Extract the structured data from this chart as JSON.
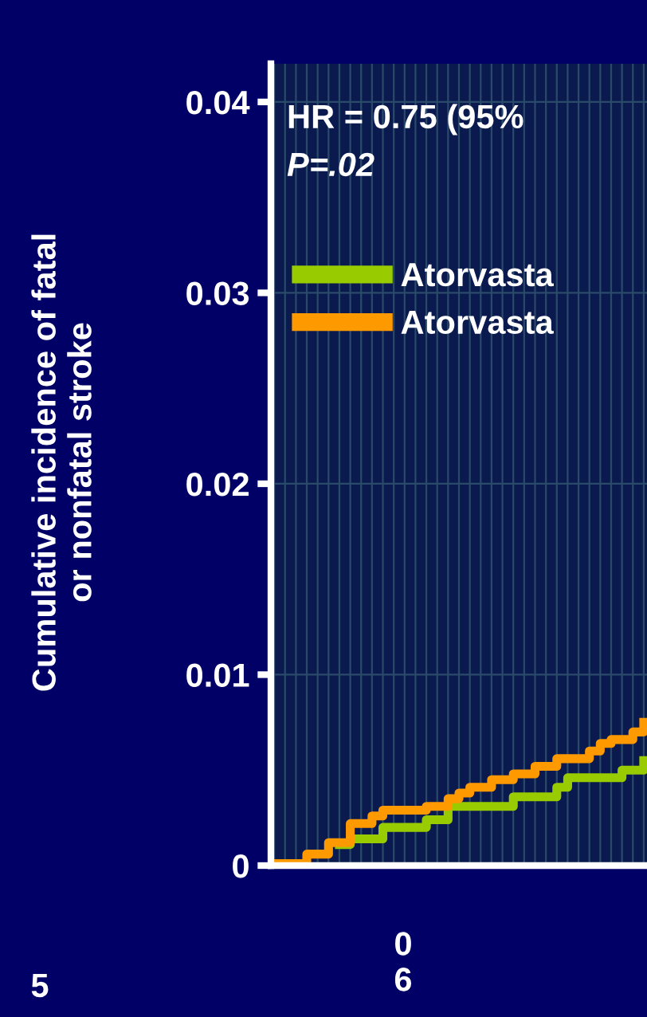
{
  "chart_data": {
    "type": "step",
    "ylabel": "Cumulative incidence of fatal\nor nonfatal stroke",
    "categories": [
      null,
      null,
      null,
      null,
      null,
      null,
      null,
      null,
      null,
      null,
      null,
      null,
      null,
      null,
      null,
      null,
      null,
      null,
      null,
      null,
      null,
      null,
      null,
      null,
      null,
      null,
      null,
      null,
      null,
      null,
      null,
      null,
      null,
      null,
      null
    ],
    "series": [
      {
        "name": "Atorvasta",
        "color": "#99cc00",
        "values": [
          null,
          null,
          null,
          null,
          null,
          null,
          0.0011,
          0.0014,
          0.0014,
          0.0014,
          0.002,
          0.002,
          0.002,
          0.002,
          0.0024,
          0.0024,
          0.0031,
          0.0031,
          0.0031,
          0.0031,
          0.0031,
          0.0031,
          0.0036,
          0.0036,
          0.0036,
          0.0036,
          0.0041,
          0.0046,
          0.0046,
          0.0046,
          0.0046,
          0.0046,
          0.005,
          0.005,
          0.0055
        ]
      },
      {
        "name": "Atorvasta",
        "color": "#ff9900",
        "values": [
          0.0001,
          0.0001,
          0.0001,
          0.0006,
          0.0006,
          0.0012,
          0.0012,
          0.0022,
          0.0022,
          0.0026,
          0.0029,
          0.0029,
          0.0029,
          0.0029,
          0.0031,
          0.0031,
          0.0035,
          0.0038,
          0.0041,
          0.0041,
          0.0045,
          0.0045,
          0.0048,
          0.0048,
          0.0052,
          0.0052,
          0.0056,
          0.0056,
          0.0056,
          0.006,
          0.0064,
          0.0066,
          0.0066,
          0.007,
          0.0075
        ]
      }
    ],
    "ylim": [
      0,
      0.042
    ],
    "yticks": [
      0,
      0.01,
      0.02,
      0.03,
      0.04
    ],
    "tick_labels": "y",
    "grid": true,
    "legend": "top left",
    "annotations": [
      "HR = 0.75 (95%",
      "P=.02",
      "0\n6",
      "5"
    ]
  }
}
